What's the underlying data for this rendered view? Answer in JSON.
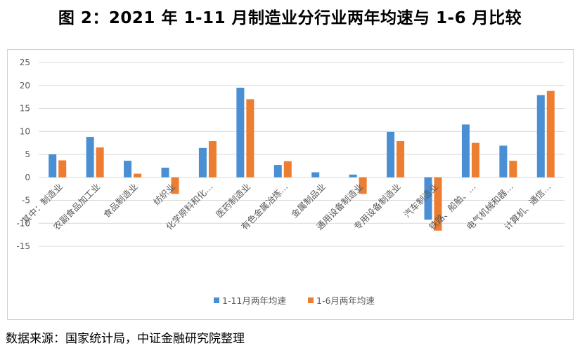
{
  "title": "图 2：2021 年 1-11 月制造业分行业两年均速与 1-6 月比较",
  "source": "数据来源：国家统计局，中证金融研究院整理",
  "colors": {
    "series1": "#4a8fd4",
    "series2": "#ed7d31",
    "grid": "#d9d9d9",
    "axis_text": "#595959"
  },
  "chart_data": {
    "type": "bar",
    "title": "",
    "xlabel": "",
    "ylabel": "",
    "ylim": [
      -15,
      25
    ],
    "yticks": [
      -15,
      -10,
      -5,
      0,
      5,
      10,
      15,
      20,
      25
    ],
    "grid": true,
    "legend_position": "bottom",
    "categories": [
      "其中：制造业",
      "农副食品加工业",
      "食品制造业",
      "纺织业",
      "化学原料和化…",
      "医药制造业",
      "有色金属冶炼…",
      "金属制品业",
      "通用设备制造业",
      "专用设备制造业",
      "汽车制造业",
      "铁路、船舶、…",
      "电气机械和器…",
      "计算机、通信…"
    ],
    "series": [
      {
        "name": "1-11月两年均速",
        "values": [
          5.0,
          8.8,
          3.6,
          2.1,
          6.4,
          19.5,
          2.7,
          1.1,
          0.6,
          9.9,
          -9.2,
          11.5,
          6.9,
          17.9
        ]
      },
      {
        "name": "1-6月两年均速",
        "values": [
          3.7,
          6.5,
          0.8,
          -3.6,
          7.9,
          17.0,
          3.5,
          0,
          -3.6,
          7.9,
          -11.6,
          7.5,
          3.6,
          18.8
        ]
      }
    ]
  }
}
